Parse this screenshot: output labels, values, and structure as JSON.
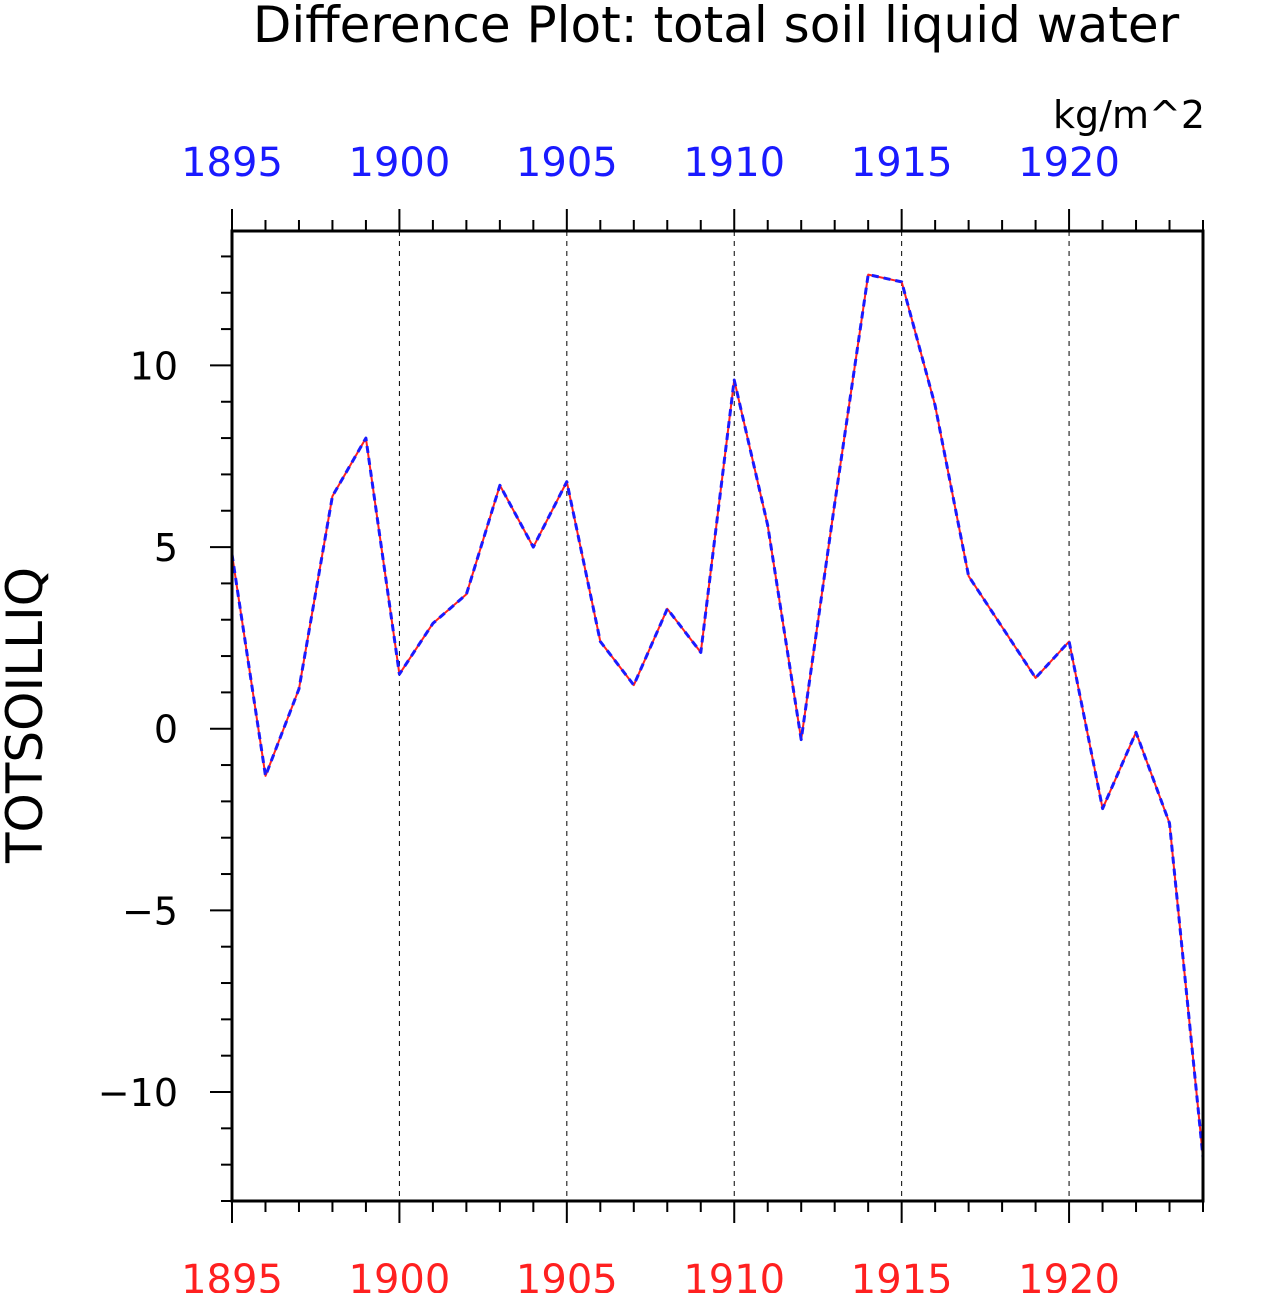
{
  "chart_data": {
    "type": "line",
    "title": "Difference Plot: total soil liquid water",
    "units": "kg/m^2",
    "ylabel": "TOTSOILLIQ",
    "xlabel": "",
    "xlim": [
      1895,
      1924
    ],
    "ylim": [
      -13.0,
      13.7
    ],
    "x_ticks": [
      1895,
      1900,
      1905,
      1910,
      1915,
      1920
    ],
    "x_tick_labels": [
      "1895",
      "1900",
      "1905",
      "1910",
      "1915",
      "1920"
    ],
    "y_ticks": [
      -10,
      -5,
      0,
      5,
      10
    ],
    "y_tick_labels": [
      "−10",
      "−5",
      "0",
      "5",
      "10"
    ],
    "grid": "vertical dashed at major x ticks",
    "colors": {
      "top_axis_labels": "#1a1aff",
      "bottom_axis_labels": "#ff2020",
      "series_1": "#ff2020",
      "series_2": "#1a1aff"
    },
    "x": [
      1895,
      1896,
      1897,
      1898,
      1899,
      1900,
      1901,
      1902,
      1903,
      1904,
      1905,
      1906,
      1907,
      1908,
      1909,
      1910,
      1911,
      1912,
      1913,
      1914,
      1915,
      1916,
      1917,
      1918,
      1919,
      1920,
      1921,
      1922,
      1923,
      1924
    ],
    "series": [
      {
        "style": "solid",
        "values": [
          4.8,
          -1.3,
          1.1,
          6.4,
          8.0,
          1.5,
          2.9,
          3.7,
          6.7,
          5.0,
          6.8,
          2.4,
          1.2,
          3.3,
          2.1,
          9.6,
          5.6,
          -0.3,
          6.2,
          12.5,
          12.3,
          8.9,
          4.2,
          2.8,
          1.4,
          2.4,
          -2.2,
          -0.1,
          -2.6,
          -11.8
        ]
      },
      {
        "style": "dashed",
        "values": [
          4.8,
          -1.3,
          1.1,
          6.4,
          8.0,
          1.5,
          2.9,
          3.7,
          6.7,
          5.0,
          6.8,
          2.4,
          1.2,
          3.3,
          2.1,
          9.6,
          5.6,
          -0.3,
          6.2,
          12.5,
          12.3,
          8.9,
          4.2,
          2.8,
          1.4,
          2.4,
          -2.2,
          -0.1,
          -2.6,
          -11.8
        ]
      }
    ]
  }
}
